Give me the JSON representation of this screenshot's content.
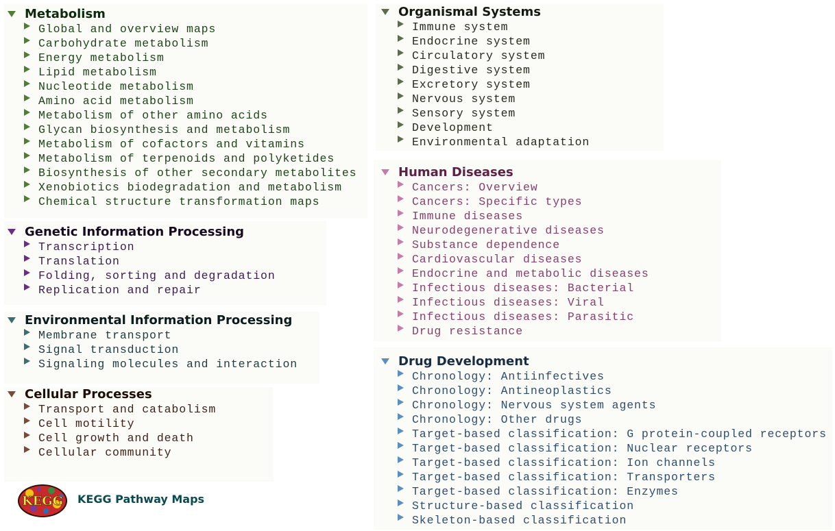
{
  "categories": [
    {
      "id": "metabolism",
      "title": "Metabolism",
      "title_color": "#0c2a0c",
      "arrow_color": "#4f7d33",
      "item_color": "#1e4519",
      "items": [
        "Global and overview maps",
        "Carbohydrate metabolism",
        "Energy metabolism",
        "Lipid metabolism",
        "Nucleotide metabolism",
        "Amino acid metabolism",
        "Metabolism of other amino acids",
        "Glycan biosynthesis and metabolism",
        "Metabolism of cofactors and vitamins",
        "Metabolism of terpenoids and polyketides",
        "Biosynthesis of other secondary metabolites",
        "Xenobiotics biodegradation and metabolism",
        "Chemical structure transformation maps"
      ]
    },
    {
      "id": "genetic",
      "title": "Genetic Information Processing",
      "title_color": "#160a20",
      "arrow_color": "#6b2c85",
      "item_color": "#3d1a4e",
      "items": [
        "Transcription",
        "Translation",
        "Folding, sorting and degradation",
        "Replication and repair"
      ]
    },
    {
      "id": "environmental",
      "title": "Environmental Information Processing",
      "title_color": "#0a1c1e",
      "arrow_color": "#3b6e73",
      "item_color": "#1d3c40",
      "items": [
        "Membrane transport",
        "Signal transduction",
        "Signaling molecules and interaction"
      ]
    },
    {
      "id": "cellular",
      "title": "Cellular Processes",
      "title_color": "#1e0e08",
      "arrow_color": "#7a4a36",
      "item_color": "#3e2218",
      "items": [
        "Transport and catabolism",
        "Cell motility",
        "Cell growth and death",
        "Cellular community"
      ]
    },
    {
      "id": "organismal",
      "title": "Organismal Systems",
      "title_color": "#141a10",
      "arrow_color": "#5e6b4c",
      "item_color": "#262b1e",
      "items": [
        "Immune system",
        "Endocrine system",
        "Circulatory system",
        "Digestive system",
        "Excretory system",
        "Nervous system",
        "Sensory system",
        "Development",
        "Environmental adaptation"
      ]
    },
    {
      "id": "human",
      "title": "Human Diseases",
      "title_color": "#5e2145",
      "arrow_color": "#c57ca6",
      "item_color": "#8a3f6b",
      "items": [
        "Cancers: Overview",
        "Cancers: Specific types",
        "Immune diseases",
        "Neurodegenerative diseases",
        "Substance dependence",
        "Cardiovascular diseases",
        "Endocrine and metabolic diseases",
        "Infectious diseases: Bacterial",
        "Infectious diseases: Viral",
        "Infectious diseases: Parasitic",
        "Drug resistance"
      ]
    },
    {
      "id": "drug",
      "title": "Drug Development",
      "title_color": "#162d44",
      "arrow_color": "#5c8fbf",
      "item_color": "#2e4e6e",
      "items": [
        "Chronology: Antiinfectives",
        "Chronology: Antineoplastics",
        "Chronology: Nervous system agents",
        "Chronology: Other drugs",
        "Target-based classification: G protein-coupled receptors",
        "Target-based classification: Nuclear receptors",
        "Target-based classification: Ion channels",
        "Target-based classification: Transporters",
        "Target-based classification: Enzymes",
        "Structure-based classification",
        "Skeleton-based classification"
      ]
    }
  ],
  "footer": {
    "logo_text": "KEGG",
    "caption": "KEGG Pathway Maps"
  }
}
